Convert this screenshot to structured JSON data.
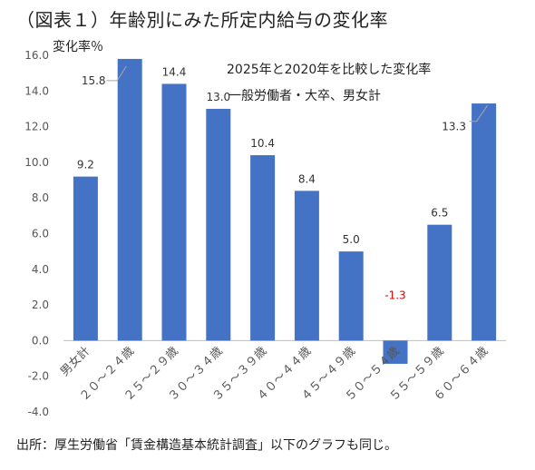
{
  "figure_title": "（図表１）年齢別にみた所定内給与の変化率",
  "source_note": "出所：厚生労働省「賃金構造基本統計調査」以下のグラフも同じ。",
  "chart_data": {
    "type": "bar",
    "title": "2025年と2020年を比較した変化率",
    "subtitle": "一般労働者・大卒、男女計",
    "ylabel": "変化率％",
    "xlabel": "",
    "ylim": [
      -4.0,
      16.0
    ],
    "ytick_step": 2.0,
    "yticks": [
      "16.0",
      "14.0",
      "12.0",
      "10.0",
      "8.0",
      "6.0",
      "4.0",
      "2.0",
      "0.0",
      "-2.0",
      "-4.0"
    ],
    "categories": [
      "男女計",
      "２０～２４歳",
      "２５～２９歳",
      "３０～３４歳",
      "３５～３９歳",
      "４０～４４歳",
      "４５～４９歳",
      "５０～５４歳",
      "５５～５９歳",
      "６０～６４歳"
    ],
    "values": [
      9.2,
      15.8,
      14.4,
      13.0,
      10.4,
      8.4,
      5.0,
      -1.3,
      6.5,
      13.3
    ],
    "data_labels": [
      "9.2",
      "15.8",
      "14.4",
      "13.0",
      "10.4",
      "8.4",
      "5.0",
      "-1.3",
      "6.5",
      "13.3"
    ],
    "bar_color": "#4472C4",
    "negative_label_color": "#E00000",
    "grid": false
  }
}
